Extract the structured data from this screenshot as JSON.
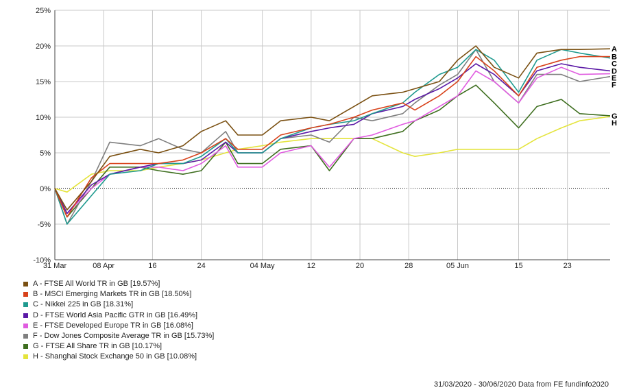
{
  "chart_data": {
    "type": "line",
    "ylim": [
      -10,
      25
    ],
    "y_ticks": [
      "-10%",
      "-5%",
      "0%",
      "5%",
      "10%",
      "15%",
      "20%",
      "25%"
    ],
    "y_tick_values": [
      -10,
      -5,
      0,
      5,
      10,
      15,
      20,
      25
    ],
    "x_range": [
      "2020-03-31",
      "2020-06-30"
    ],
    "x_ticks": [
      "31 Mar",
      "08 Apr",
      "16",
      "24",
      "04 May",
      "12",
      "20",
      "28",
      "05 Jun",
      "15",
      "23"
    ],
    "x_tick_dates": [
      "2020-03-31",
      "2020-04-08",
      "2020-04-16",
      "2020-04-24",
      "2020-05-04",
      "2020-05-12",
      "2020-05-20",
      "2020-05-28",
      "2020-06-05",
      "2020-06-15",
      "2020-06-23"
    ],
    "grid": true,
    "legend_position": "bottom-left",
    "dates": [
      "2020-03-31",
      "2020-04-02",
      "2020-04-06",
      "2020-04-09",
      "2020-04-14",
      "2020-04-17",
      "2020-04-21",
      "2020-04-24",
      "2020-04-28",
      "2020-04-30",
      "2020-05-04",
      "2020-05-07",
      "2020-05-12",
      "2020-05-15",
      "2020-05-19",
      "2020-05-22",
      "2020-05-27",
      "2020-05-29",
      "2020-06-02",
      "2020-06-05",
      "2020-06-08",
      "2020-06-11",
      "2020-06-15",
      "2020-06-18",
      "2020-06-22",
      "2020-06-25",
      "2020-06-30"
    ],
    "series": [
      {
        "name": "A - FTSE All World TR in GB [19.57%]",
        "label": "A",
        "color": "#7a5012",
        "values": [
          0,
          -3,
          1,
          4.5,
          5.5,
          5,
          6,
          8,
          9.5,
          7.5,
          7.5,
          9.5,
          10,
          9.5,
          11.5,
          13,
          13.5,
          14,
          15,
          18,
          20,
          17,
          15.5,
          19,
          19.5,
          19.5,
          19.6
        ]
      },
      {
        "name": "B - MSCI Emerging Markets TR in GB [18.50%]",
        "label": "B",
        "color": "#d8421b",
        "values": [
          0,
          -4,
          1.5,
          3.5,
          3.5,
          3.5,
          4,
          5,
          7,
          5.5,
          5.5,
          7.5,
          8.5,
          9,
          10,
          11,
          12,
          11,
          13,
          15,
          18.5,
          16.5,
          13,
          17,
          18,
          18.5,
          18.5
        ]
      },
      {
        "name": "C - Nikkei 225 in GB [18.31%]",
        "label": "C",
        "color": "#1f9a8f",
        "values": [
          0,
          -5,
          -1,
          2,
          2.5,
          3.5,
          3.5,
          4.5,
          7,
          5,
          5,
          7,
          8.5,
          9,
          9.5,
          10.5,
          12,
          13.5,
          16,
          17,
          19.5,
          18,
          13.5,
          18,
          19.5,
          19,
          18.3
        ]
      },
      {
        "name": "D - FTSE World Asia Pacific GTR in GB [16.49%]",
        "label": "D",
        "color": "#5b19a6",
        "values": [
          0,
          -3.5,
          0.5,
          2,
          3,
          3.5,
          3.5,
          4,
          6.5,
          5,
          5,
          7,
          8,
          8.5,
          9,
          10.5,
          11.5,
          12.5,
          14,
          15.5,
          17.5,
          16,
          13,
          16.5,
          17.5,
          17,
          16.5
        ]
      },
      {
        "name": "E - FTSE Developed Europe TR in GB [16.08%]",
        "label": "E",
        "color": "#e05ce0",
        "values": [
          0,
          -3.5,
          0,
          2,
          3,
          3,
          2.5,
          3.5,
          6,
          3,
          3,
          5,
          6,
          3,
          7,
          7.5,
          9,
          9.5,
          11.5,
          13,
          16.5,
          15,
          12,
          15.5,
          17,
          16,
          16.1
        ]
      },
      {
        "name": "F - Dow Jones Composite Average TR in GB [15.73%]",
        "label": "F",
        "color": "#7f7f7f",
        "values": [
          0,
          -5,
          1,
          6.5,
          6,
          7,
          5.5,
          5,
          8,
          5,
          5,
          7,
          7.5,
          6.5,
          10,
          9.5,
          10.5,
          12,
          14.5,
          16,
          19.5,
          15,
          12,
          16,
          16,
          15,
          15.7
        ]
      },
      {
        "name": "G - FTSE All Share TR in GB [10.17%]",
        "label": "G",
        "color": "#3e6e1f",
        "values": [
          0,
          -4,
          0,
          3,
          3,
          2.5,
          2,
          2.5,
          6.5,
          3.5,
          3.5,
          5.5,
          6,
          2.5,
          7,
          7,
          8,
          9.5,
          11,
          13,
          14.5,
          12,
          8.5,
          11.5,
          12.5,
          10.5,
          10.2
        ]
      },
      {
        "name": "H - Shanghai Stock Exchange 50 in GB [10.08%]",
        "label": "H",
        "color": "#e4e43c",
        "values": [
          0,
          -0.5,
          2,
          2.5,
          2.5,
          3,
          3.5,
          4,
          5,
          5.5,
          6,
          6.5,
          7,
          7,
          7,
          7,
          5,
          4.5,
          5,
          5.5,
          5.5,
          5.5,
          5.5,
          7,
          8.5,
          9.5,
          10.1
        ]
      }
    ]
  },
  "footer": "31/03/2020 - 30/06/2020 Data from FE fundinfo2020"
}
